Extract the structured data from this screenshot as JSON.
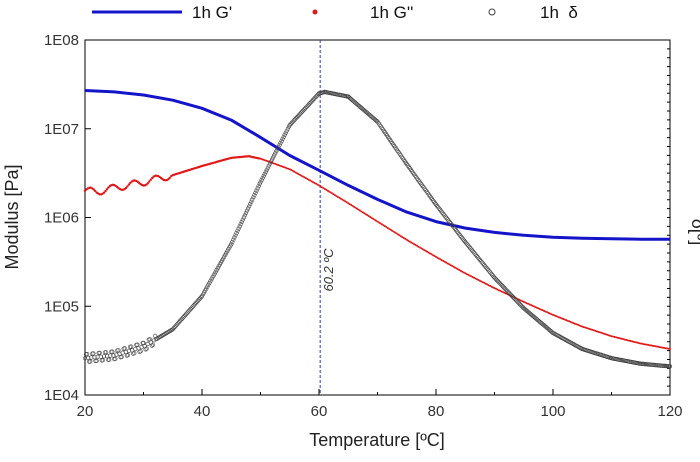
{
  "chart_data": {
    "type": "line",
    "title": "",
    "xlabel": "Temperature [ºC]",
    "ylabel": "Modulus [Pa]",
    "y2label": "δ[º]",
    "xlim": [
      20,
      120
    ],
    "ylim": [
      10000,
      100000000
    ],
    "yscale": "log",
    "x_ticks": [
      20,
      40,
      60,
      80,
      100,
      120
    ],
    "x_tick_labels": [
      "20",
      "40",
      "60",
      "80",
      "100",
      "120"
    ],
    "y_ticks": [
      10000,
      100000,
      1000000,
      10000000,
      100000000
    ],
    "y_tick_labels": [
      "1E04",
      "1E05",
      "1E06",
      "1E07",
      "1E08"
    ],
    "grid": false,
    "legend": "top",
    "vline": {
      "x": 60.2,
      "label": "60.2 ºC",
      "color": "#2a3fa0"
    },
    "series": [
      {
        "name": "1h G'",
        "style": "line",
        "color": "#1414c8",
        "axis": "left",
        "x": [
          20,
          25,
          30,
          35,
          40,
          45,
          50,
          55,
          60,
          65,
          70,
          75,
          80,
          85,
          90,
          95,
          100,
          105,
          110,
          115,
          120
        ],
        "y": [
          27000000,
          26000000,
          24000000,
          21000000,
          17000000,
          12500000,
          8000000,
          5000000,
          3400000,
          2300000,
          1600000,
          1150000,
          900000,
          760000,
          680000,
          630000,
          600000,
          585000,
          575000,
          570000,
          570000
        ]
      },
      {
        "name": "1h G''",
        "style": "markers",
        "color": "#e01818",
        "axis": "left",
        "x": [
          20,
          22,
          25,
          30,
          35,
          40,
          45,
          48,
          50,
          55,
          60,
          65,
          70,
          75,
          80,
          85,
          90,
          95,
          100,
          105,
          110,
          115,
          120
        ],
        "y": [
          2000000,
          1950000,
          2150000,
          2500000,
          3000000,
          3800000,
          4700000,
          4900000,
          4600000,
          3500000,
          2300000,
          1450000,
          900000,
          560000,
          360000,
          235000,
          160000,
          112000,
          80000,
          59000,
          46000,
          38000,
          33000
        ]
      },
      {
        "name": "1h  δ",
        "style": "open-circles",
        "color": "#404040",
        "axis": "right",
        "plotted_as_modulus_equivalent": true,
        "x": [
          20,
          25,
          30,
          35,
          40,
          45,
          50,
          55,
          60,
          61,
          65,
          70,
          75,
          80,
          85,
          90,
          95,
          100,
          105,
          110,
          115,
          120
        ],
        "y": [
          26000,
          28000,
          35000,
          55000,
          130000,
          500000,
          2500000,
          11000000,
          25000000,
          26000000,
          23000000,
          12000000,
          4000000,
          1400000,
          530000,
          210000,
          95000,
          50000,
          33000,
          26000,
          22500,
          21000
        ]
      }
    ]
  }
}
